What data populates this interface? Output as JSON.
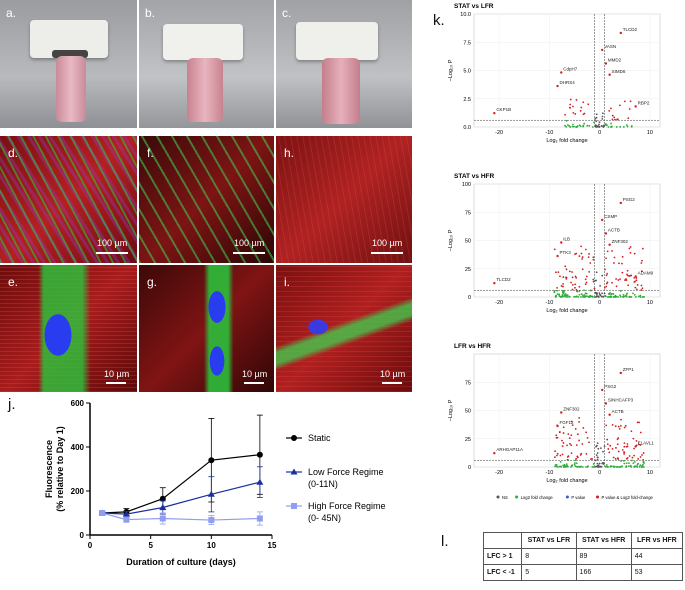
{
  "panels": {
    "a": "a.",
    "b": "b.",
    "c": "c.",
    "d": "d.",
    "e": "e.",
    "f": "f.",
    "g": "g.",
    "h": "h.",
    "i": "i.",
    "j": "j.",
    "k": "k.",
    "l": "l."
  },
  "scalebars": {
    "d": "100 µm",
    "f": "100 µm",
    "h": "100 µm",
    "e": "10 µm",
    "g": "10 µm",
    "i": "10 µm"
  },
  "chart_data": [
    {
      "type": "line",
      "xlabel": "Duration of culture  (days)",
      "ylabel": "Fluorescence (% relative to Day  1)",
      "xlim": [
        0,
        14
      ],
      "ylim": [
        0,
        600
      ],
      "xticks": [
        "0",
        "5",
        "10",
        "15"
      ],
      "yticks": [
        "0",
        "200",
        "400",
        "600"
      ],
      "legend_position": "right",
      "series": [
        {
          "name": "Static",
          "color": "#000000",
          "marker": "circle",
          "x": [
            1,
            3,
            6,
            10,
            14
          ],
          "y": [
            100,
            105,
            165,
            340,
            365
          ],
          "err": [
            8,
            15,
            50,
            190,
            180
          ]
        },
        {
          "name": "Low Force Regime",
          "name2": "(0-11N)",
          "color": "#1a2fa0",
          "marker": "triangle",
          "x": [
            1,
            3,
            6,
            10,
            14
          ],
          "y": [
            100,
            95,
            125,
            185,
            240
          ],
          "err": [
            8,
            12,
            30,
            80,
            70
          ]
        },
        {
          "name": "High Force Regime",
          "name2": "(0- 45N)",
          "color": "#8f9ef0",
          "marker": "square",
          "x": [
            1,
            3,
            6,
            10,
            14
          ],
          "y": [
            100,
            70,
            75,
            68,
            75
          ],
          "err": [
            8,
            12,
            25,
            20,
            30
          ]
        }
      ]
    },
    {
      "type": "scatter",
      "title": "STAT vs LFR",
      "xlabel": "Log₂ fold change",
      "ylabel": "−Log₁₀ P",
      "xlim": [
        -25,
        12
      ],
      "ylim": [
        0,
        10
      ],
      "xticks": [
        "-20",
        "-10",
        "0",
        "10"
      ],
      "yticks": [
        "0.0",
        "2.5",
        "5.0",
        "7.5",
        "10.0"
      ],
      "labels": [
        "TLCD2",
        "VASN",
        "MMD2",
        "SIMD6",
        "CdpH7",
        "DHRS4",
        "CKP1B",
        "RBP2"
      ]
    },
    {
      "type": "scatter",
      "title": "STAT vs HFR",
      "xlabel": "Log₂ fold change",
      "ylabel": "−Log₁₀ P",
      "xlim": [
        -25,
        12
      ],
      "ylim": [
        0,
        100
      ],
      "xticks": [
        "-20",
        "-10",
        "0",
        "10"
      ],
      "yticks": [
        "0",
        "25",
        "50",
        "75",
        "100"
      ],
      "labels": [
        "PSG2",
        "CSMP",
        "ACTB",
        "ZNF302",
        "ILB",
        "PTK3",
        "TLCD2",
        "ADAM9"
      ]
    },
    {
      "type": "scatter",
      "title": "LFR vs HFR",
      "xlabel": "Log₂ fold change",
      "ylabel": "−Log₁₀ P",
      "xlim": [
        -25,
        12
      ],
      "ylim": [
        0,
        100
      ],
      "xticks": [
        "-20",
        "-10",
        "0",
        "10"
      ],
      "yticks": [
        "0",
        "25",
        "50",
        "75"
      ],
      "labels": [
        "ZFP1",
        "PSG2",
        "SINHCAFP3",
        "ACTB",
        "ZNF302",
        "FGF12",
        "ARHGAP11A",
        "ELAVL1"
      ],
      "legend": [
        "NS",
        "Log2 fold change",
        "P value",
        "P value & Log2 fold-change"
      ],
      "legend_colors": [
        "#555555",
        "#2eaa3a",
        "#3a5bd0",
        "#d02020"
      ]
    }
  ],
  "table": {
    "columns": [
      "",
      "STAT vs LFR",
      "STAT vs HFR",
      "LFR vs HFR"
    ],
    "rows": [
      [
        "LFC > 1",
        "8",
        "89",
        "44"
      ],
      [
        "LFC < -1",
        "5",
        "166",
        "53"
      ]
    ]
  }
}
